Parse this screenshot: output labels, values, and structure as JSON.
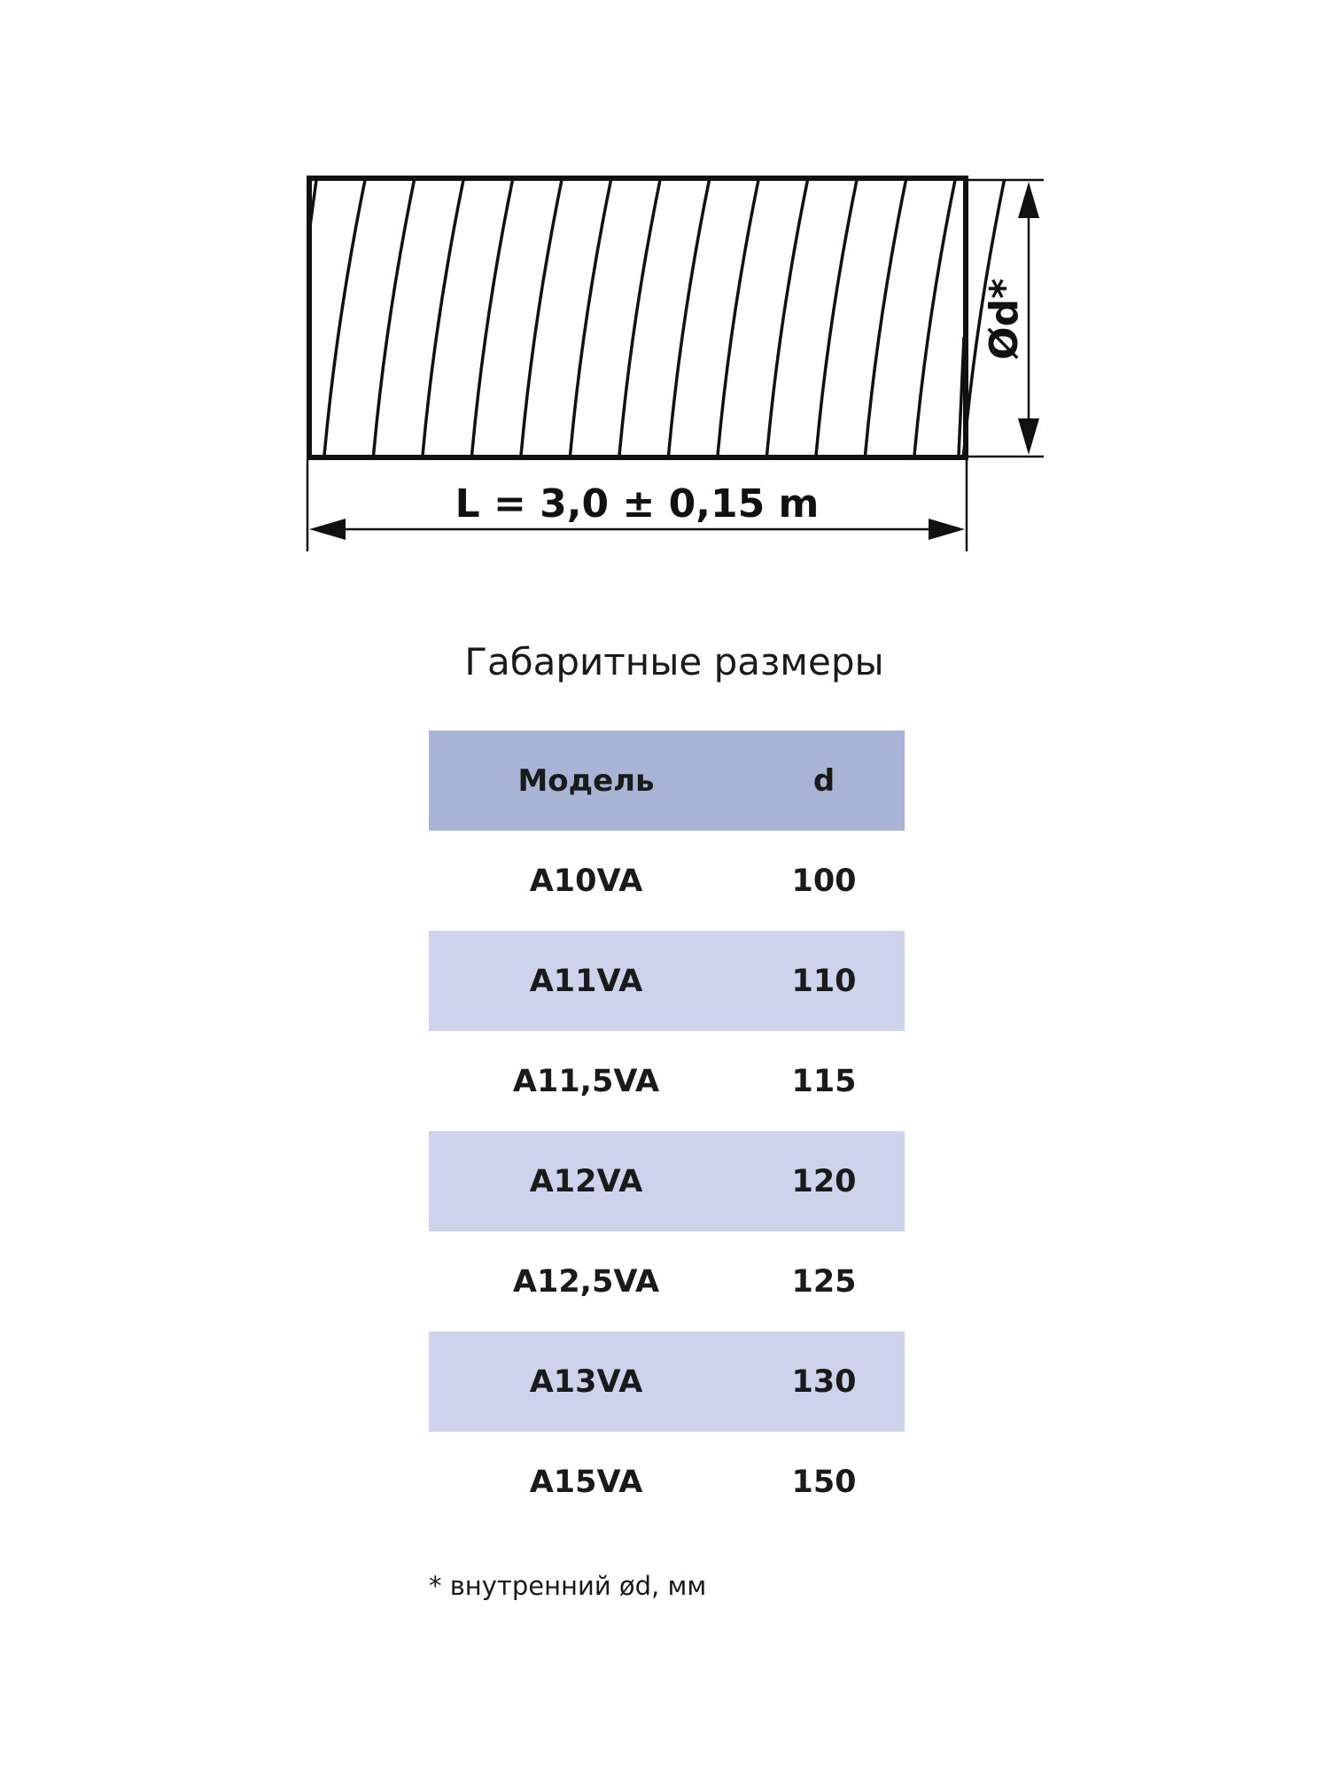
{
  "drawing": {
    "length_label": "L = 3,0 ± 0,15 m",
    "diameter_label": "Ød*"
  },
  "title": "Габаритные размеры",
  "table": {
    "headers": [
      "Модель",
      "d"
    ],
    "rows": [
      [
        "A10VA",
        "100"
      ],
      [
        "A11VA",
        "110"
      ],
      [
        "A11,5VA",
        "115"
      ],
      [
        "A12VA",
        "120"
      ],
      [
        "A12,5VA",
        "125"
      ],
      [
        "A13VA",
        "130"
      ],
      [
        "A15VA",
        "150"
      ]
    ]
  },
  "footnote": "* внутренний ød, мм",
  "colors": {
    "header": "#a9b3d6",
    "stripe": "#ccd3ea"
  }
}
